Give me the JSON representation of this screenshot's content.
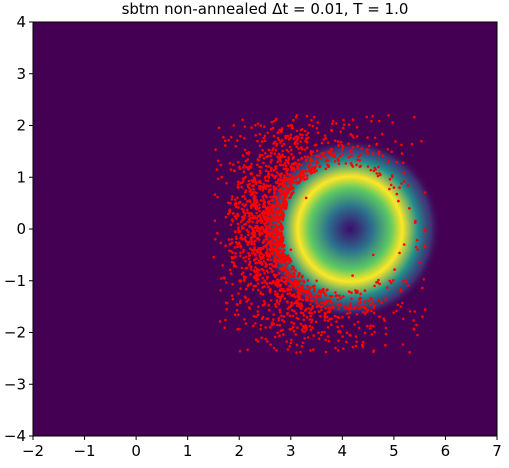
{
  "chart_data": {
    "type": "scatter",
    "title": "sbtm non-annealed Δt = 0.01, T = 1.0",
    "xlabel": "",
    "ylabel": "",
    "xlim": [
      -2,
      7
    ],
    "ylim": [
      -4,
      4
    ],
    "xticks": [
      -2,
      -1,
      0,
      1,
      2,
      3,
      4,
      5,
      6,
      7
    ],
    "yticks": [
      -4,
      -3,
      -2,
      -1,
      0,
      1,
      2,
      3,
      4
    ],
    "grid": false,
    "legend": "none",
    "background_colormap": "viridis",
    "background_density": {
      "description": "ring-shaped density centered near (4, 0) with radius about 1, brightest on the right side",
      "center": [
        4.0,
        0.0
      ],
      "ring_radius": 1.0
    },
    "scatter": {
      "color": "#ff0000",
      "approx_x_range": [
        1.5,
        5.7
      ],
      "approx_y_range": [
        -2.4,
        2.2
      ],
      "hole_center": [
        4.0,
        0.0
      ],
      "sample_points": [
        [
          2.2,
          1.2
        ],
        [
          2.5,
          1.8
        ],
        [
          3.0,
          2.0
        ],
        [
          3.4,
          2.1
        ],
        [
          3.8,
          1.9
        ],
        [
          4.3,
          1.6
        ],
        [
          4.7,
          1.2
        ],
        [
          5.0,
          0.8
        ],
        [
          5.3,
          0.4
        ],
        [
          5.6,
          -0.35
        ],
        [
          5.2,
          -0.3
        ],
        [
          4.6,
          -0.5
        ],
        [
          4.2,
          -0.9
        ],
        [
          3.8,
          -1.3
        ],
        [
          3.4,
          -1.8
        ],
        [
          3.0,
          -2.2
        ],
        [
          2.6,
          -1.9
        ],
        [
          2.1,
          -1.0
        ],
        [
          1.8,
          -0.2
        ],
        [
          2.0,
          0.5
        ],
        [
          2.6,
          0.2
        ],
        [
          3.0,
          -0.4
        ],
        [
          3.3,
          0.6
        ],
        [
          2.8,
          1.0
        ],
        [
          3.5,
          -1.0
        ]
      ]
    },
    "colors": {
      "point": "#ff0000",
      "background_low": "#440154",
      "background_high": "#fde725"
    }
  }
}
